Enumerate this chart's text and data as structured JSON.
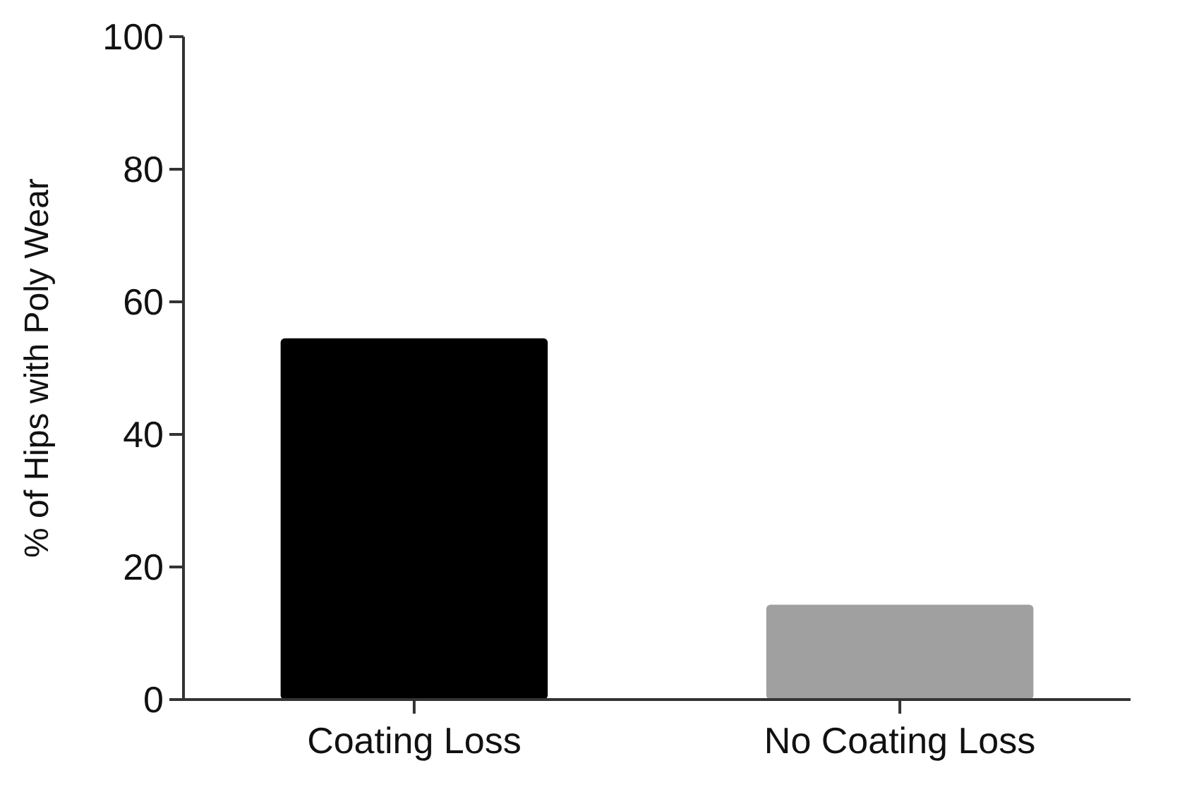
{
  "chart_data": {
    "type": "bar",
    "ylabel": "% of Hips with Poly Wear",
    "categories": [
      "Coating Loss",
      "No Coating Loss"
    ],
    "values": [
      54.5,
      14.3
    ],
    "colors": [
      "#000000",
      "#a0a0a0"
    ],
    "ylim": [
      0,
      100
    ],
    "yticks": [
      0,
      20,
      40,
      60,
      80,
      100
    ],
    "grid": false
  }
}
